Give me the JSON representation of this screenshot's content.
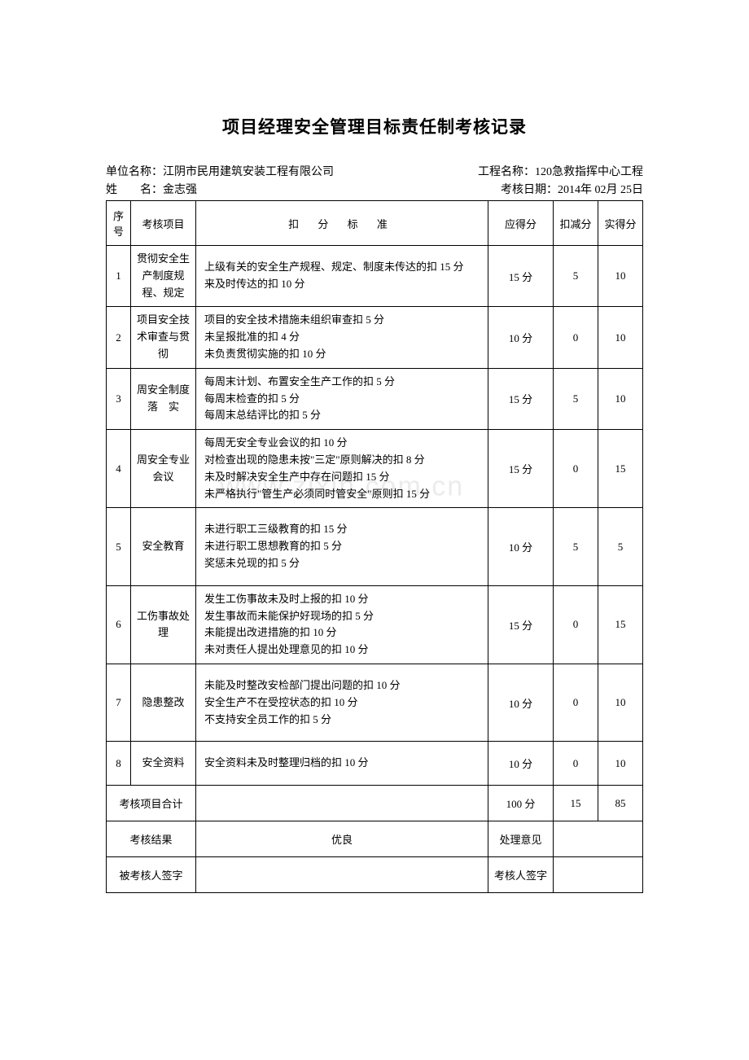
{
  "title": "项目经理安全管理目标责任制考核记录",
  "meta": {
    "unit_label": "单位名称：",
    "unit_value": "江阴市民用建筑安装工程有限公司",
    "project_label": "工程名称：",
    "project_value": "120急救指挥中心工程",
    "name_label": "姓　　名：",
    "name_value": "金志强",
    "date_label": "考核日期：",
    "date_value": "2014年  02月  25日"
  },
  "headers": {
    "seq": "序号",
    "item": "考核项目",
    "criteria": "扣 分 标 准",
    "full": "应得分",
    "deduct": "扣减分",
    "actual": "实得分"
  },
  "rows": [
    {
      "seq": "1",
      "item": "贯彻安全生产制度规程、规定",
      "criteria": "上级有关的安全生产规程、规定、制度未传达的扣 15 分\n来及时传达的扣 10 分",
      "full": "15 分",
      "deduct": "5",
      "actual": "10"
    },
    {
      "seq": "2",
      "item": "项目安全技术审查与贯彻",
      "criteria": "项目的安全技术措施未组织审查扣 5 分\n未呈报批准的扣 4 分\n未负责贯彻实施的扣 10 分",
      "full": "10 分",
      "deduct": "0",
      "actual": "10"
    },
    {
      "seq": "3",
      "item": "周安全制度落　实",
      "criteria": "每周末计划、布置安全生产工作的扣 5 分\n每周末检查的扣 5 分\n每周末总结评比的扣 5 分",
      "full": "15 分",
      "deduct": "5",
      "actual": "10"
    },
    {
      "seq": "4",
      "item": "周安全专业会议",
      "criteria": "每周无安全专业会议的扣 10 分\n对检查出现的隐患未按\"三定\"原则解决的扣 8 分\n未及时解决安全生产中存在问题扣 15 分\n未严格执行\"管生产必须同时管安全\"原则扣 15 分",
      "full": "15 分",
      "deduct": "0",
      "actual": "15"
    },
    {
      "seq": "5",
      "item": "安全教育",
      "criteria": "未进行职工三级教育的扣 15 分\n未进行职工思想教育的扣 5 分\n奖惩未兑现的扣 5 分",
      "full": "10 分",
      "deduct": "5",
      "actual": "5"
    },
    {
      "seq": "6",
      "item": "工伤事故处　理",
      "criteria": "发生工伤事故未及时上报的扣 10 分\n发生事故而未能保护好现场的扣 5 分\n未能提出改进措施的扣 10 分\n未对责任人提出处理意见的扣 10 分",
      "full": "15 分",
      "deduct": "0",
      "actual": "15"
    },
    {
      "seq": "7",
      "item": "隐患整改",
      "criteria": "未能及时整改安检部门提出问题的扣 10 分\n安全生产不在受控状态的扣 10 分\n不支持安全员工作的扣 5 分",
      "full": "10 分",
      "deduct": "0",
      "actual": "10"
    },
    {
      "seq": "8",
      "item": "安全资料",
      "criteria": "安全资料未及时整理归档的扣 10 分",
      "full": "10 分",
      "deduct": "0",
      "actual": "10"
    }
  ],
  "total": {
    "label": "考核项目合计",
    "full": "100 分",
    "deduct": "15",
    "actual": "85"
  },
  "result": {
    "label": "考核结果",
    "value": "优良",
    "opinion_label": "处理意见",
    "opinion_value": ""
  },
  "signature": {
    "examinee_label": "被考核人签字",
    "examinee_value": "",
    "examiner_label": "考核人签字",
    "examiner_value": ""
  },
  "watermark_text": "www.zixin.com.cn",
  "styling": {
    "border_color": "#000000",
    "background": "#ffffff",
    "font_family": "SimSun",
    "title_fontsize": 21,
    "body_fontsize": 13,
    "meta_fontsize": 14,
    "watermark_color": "rgba(0,0,0,0.08)",
    "watermark_fontsize": 34
  }
}
